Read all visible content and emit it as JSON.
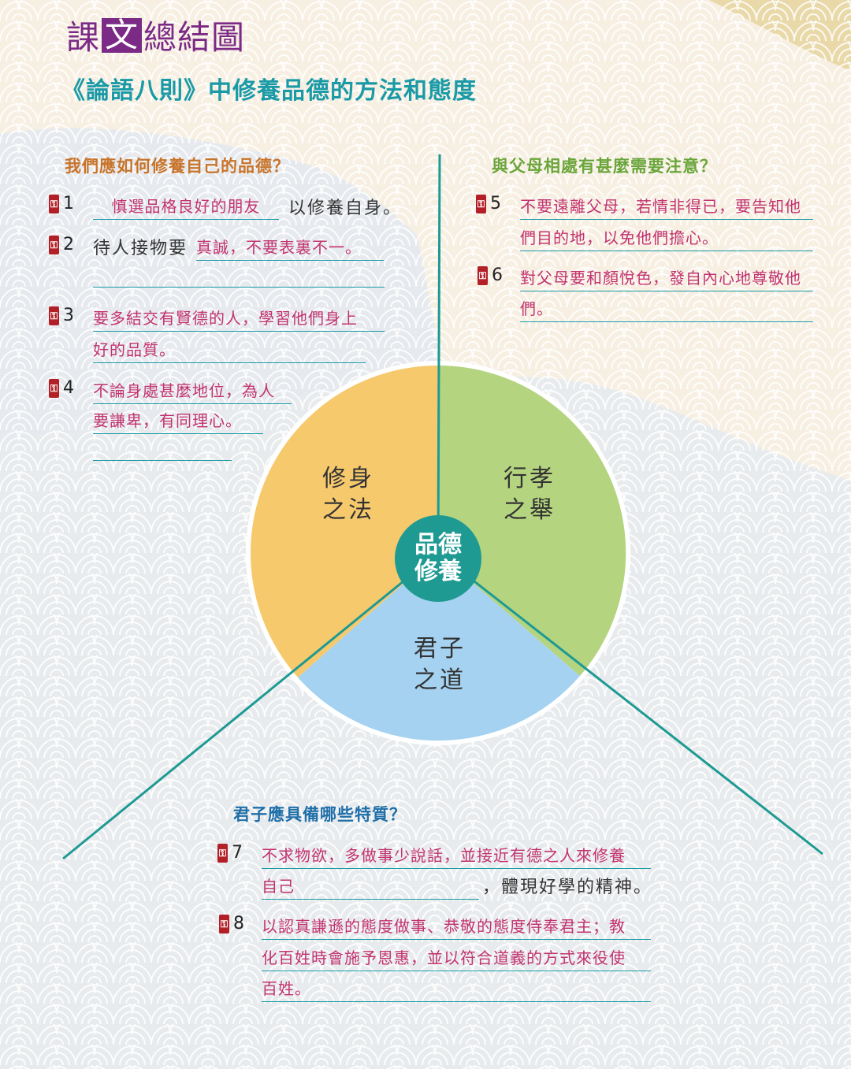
{
  "brand": {
    "p1": "課",
    "p2": "文",
    "p3": "總結圖"
  },
  "subtitle": "《論語八則》中修養品德的方法和態度",
  "center": {
    "line1": "品德",
    "line2": "修養"
  },
  "segments": {
    "left": {
      "line1": "修身",
      "line2": "之法"
    },
    "right": {
      "line1": "行孝",
      "line2": "之舉"
    },
    "bottom": {
      "line1": "君子",
      "line2": "之道"
    }
  },
  "colors": {
    "left": "#f6c96d",
    "right": "#b4d47f",
    "bottom": "#a4d2f0",
    "teal": "#1e9a93"
  },
  "q1": {
    "title": "我們應如何修養自己的品德？",
    "items": [
      {
        "n": "1",
        "ans": "慎選品格良好的朋友",
        "suffix": "以修養自身。"
      },
      {
        "n": "2",
        "prefix": "待人接物要",
        "ans": "真誠，不要表裏不一。"
      },
      {
        "n": "3",
        "ans1": "要多結交有賢德的人，學習他們身上",
        "ans2": "好的品質。"
      },
      {
        "n": "4",
        "ans1": "不論身處甚麼地位，為人",
        "ans2": "要謙卑，有同理心。"
      }
    ]
  },
  "q2": {
    "title": "與父母相處有甚麼需要注意？",
    "items": [
      {
        "n": "5",
        "ans1": "不要遠離父母，若情非得已，要告知他",
        "ans2": "們目的地，以免他們擔心。"
      },
      {
        "n": "6",
        "ans1": "對父母要和顏悅色，發自內心地尊敬他",
        "ans2": "們。"
      }
    ]
  },
  "q3": {
    "title": "君子應具備哪些特質？",
    "items": [
      {
        "n": "7",
        "ans1": "不求物欲，多做事少說話，並接近有德之人來修養",
        "ans2": "自己",
        "suffix": "，體現好學的精神。"
      },
      {
        "n": "8",
        "ans1": "以認真謙遜的態度做事、恭敬的態度侍奉君主；教",
        "ans2": "化百姓時會施予恩惠，並以符合道義的方式來役使",
        "ans3": "百姓。"
      }
    ]
  }
}
